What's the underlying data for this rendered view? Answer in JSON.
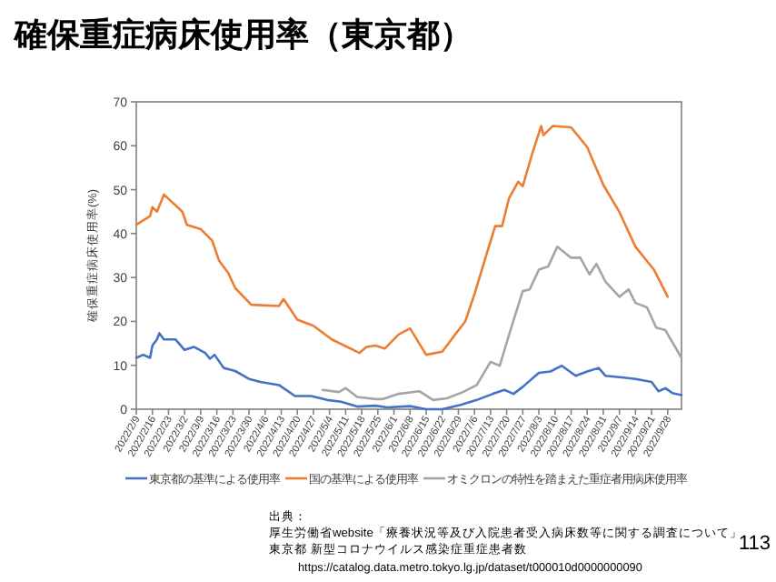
{
  "chart_data": {
    "type": "line",
    "title": "確保重症病床使用率（東京都）",
    "ylabel": "確保重症病床使用率(%)",
    "series": [
      {
        "name": "東京都の基準による使用率",
        "color": "#4472c4",
        "x": [
          "2022-02-09",
          "2022-02-12",
          "2022-02-15",
          "2022-02-16",
          "2022-02-18",
          "2022-02-19",
          "2022-02-21",
          "2022-02-26",
          "2022-03-02",
          "2022-03-06",
          "2022-03-11",
          "2022-03-13",
          "2022-03-15",
          "2022-03-19",
          "2022-03-24",
          "2022-03-30",
          "2022-04-04",
          "2022-04-12",
          "2022-04-19",
          "2022-04-26",
          "2022-05-03",
          "2022-05-09",
          "2022-05-16",
          "2022-05-24",
          "2022-05-29",
          "2022-06-08",
          "2022-06-15",
          "2022-06-22",
          "2022-06-30",
          "2022-07-07",
          "2022-07-14",
          "2022-07-19",
          "2022-07-23",
          "2022-07-27",
          "2022-08-03",
          "2022-08-08",
          "2022-08-13",
          "2022-08-19",
          "2022-08-24",
          "2022-08-29",
          "2022-09-01",
          "2022-09-09",
          "2022-09-14",
          "2022-09-21",
          "2022-09-24",
          "2022-09-27",
          "2022-09-30",
          "2022-10-04"
        ],
        "values": [
          11.7,
          12.4,
          11.7,
          14.5,
          15.9,
          17.3,
          15.9,
          15.9,
          13.5,
          14.2,
          12.8,
          11.5,
          12.4,
          9.4,
          8.7,
          6.9,
          6.2,
          5.5,
          3.0,
          3.0,
          2.1,
          1.7,
          0.6,
          0.8,
          0.4,
          0.7,
          0,
          0,
          1.0,
          2.1,
          3.5,
          4.4,
          3.5,
          5.1,
          8.3,
          8.6,
          9.9,
          7.6,
          8.6,
          9.4,
          7.6,
          7.2,
          6.9,
          6.2,
          4.1,
          4.8,
          3.7,
          3.2
        ]
      },
      {
        "name": "国の基準による使用率",
        "color": "#ed7d31",
        "x": [
          "2022-02-09",
          "2022-02-15",
          "2022-02-16",
          "2022-02-18",
          "2022-02-21",
          "2022-03-01",
          "2022-03-03",
          "2022-03-09",
          "2022-03-14",
          "2022-03-17",
          "2022-03-21",
          "2022-03-24",
          "2022-03-31",
          "2022-04-12",
          "2022-04-14",
          "2022-04-20",
          "2022-04-27",
          "2022-05-05",
          "2022-05-17",
          "2022-05-20",
          "2022-05-24",
          "2022-05-28",
          "2022-06-03",
          "2022-06-08",
          "2022-06-15",
          "2022-06-22",
          "2022-06-28",
          "2022-07-02",
          "2022-07-06",
          "2022-07-10",
          "2022-07-15",
          "2022-07-18",
          "2022-07-21",
          "2022-07-25",
          "2022-07-27",
          "2022-07-31",
          "2022-08-04",
          "2022-08-05",
          "2022-08-09",
          "2022-08-17",
          "2022-08-24",
          "2022-08-31",
          "2022-09-07",
          "2022-09-14",
          "2022-09-22",
          "2022-09-28"
        ],
        "values": [
          42.0,
          44.0,
          46.0,
          45.0,
          48.9,
          45.0,
          42.0,
          41.0,
          38.4,
          33.8,
          31.0,
          27.6,
          23.8,
          23.5,
          25.1,
          20.4,
          19.0,
          15.9,
          12.8,
          14.2,
          14.5,
          13.8,
          17.0,
          18.4,
          12.4,
          13.1,
          17.3,
          20.0,
          26.2,
          33.1,
          41.7,
          41.7,
          48.0,
          51.8,
          50.8,
          58.0,
          64.5,
          62.4,
          64.5,
          64.2,
          59.7,
          51.1,
          44.9,
          37.0,
          31.8,
          25.6
        ]
      },
      {
        "name": "オミクロンの特性を踏まえた重症者用病床使用率",
        "color": "#a5a5a5",
        "x": [
          "2022-05-01",
          "2022-05-08",
          "2022-05-11",
          "2022-05-16",
          "2022-05-24",
          "2022-05-27",
          "2022-06-03",
          "2022-06-12",
          "2022-06-18",
          "2022-06-24",
          "2022-07-01",
          "2022-07-07",
          "2022-07-13",
          "2022-07-17",
          "2022-07-22",
          "2022-07-27",
          "2022-07-30",
          "2022-08-03",
          "2022-08-07",
          "2022-08-11",
          "2022-08-17",
          "2022-08-21",
          "2022-08-25",
          "2022-08-28",
          "2022-09-01",
          "2022-09-07",
          "2022-09-11",
          "2022-09-14",
          "2022-09-19",
          "2022-09-23",
          "2022-09-27",
          "2022-10-04"
        ],
        "values": [
          4.4,
          3.9,
          4.8,
          2.8,
          2.3,
          2.3,
          3.5,
          4.1,
          2.1,
          2.5,
          3.9,
          5.5,
          10.8,
          9.9,
          18.6,
          26.9,
          27.3,
          31.8,
          32.5,
          37.0,
          34.5,
          34.5,
          30.7,
          33.1,
          29.0,
          25.6,
          27.3,
          24.2,
          23.2,
          18.6,
          18.0,
          11.7
        ]
      }
    ],
    "xlim": [
      "2022-02-09",
      "2022-10-04"
    ],
    "xticks": [
      {
        "value": "2022-02-09",
        "label": "2022/2/9"
      },
      {
        "value": "2022-02-16",
        "label": "2022/2/16"
      },
      {
        "value": "2022-02-23",
        "label": "2022/2/23"
      },
      {
        "value": "2022-03-02",
        "label": "2022/3/2"
      },
      {
        "value": "2022-03-09",
        "label": "2022/3/9"
      },
      {
        "value": "2022-03-16",
        "label": "2022/3/16"
      },
      {
        "value": "2022-03-23",
        "label": "2022/3/23"
      },
      {
        "value": "2022-03-30",
        "label": "2022/3/30"
      },
      {
        "value": "2022-04-06",
        "label": "2022/4/6"
      },
      {
        "value": "2022-04-13",
        "label": "2022/4/13"
      },
      {
        "value": "2022-04-20",
        "label": "2022/4/20"
      },
      {
        "value": "2022-04-27",
        "label": "2022/4/27"
      },
      {
        "value": "2022-05-04",
        "label": "2022/5/4"
      },
      {
        "value": "2022-05-11",
        "label": "2022/5/11"
      },
      {
        "value": "2022-05-18",
        "label": "2022/5/18"
      },
      {
        "value": "2022-05-25",
        "label": "2022/5/25"
      },
      {
        "value": "2022-06-01",
        "label": "2022/6/1"
      },
      {
        "value": "2022-06-08",
        "label": "2022/6/8"
      },
      {
        "value": "2022-06-15",
        "label": "2022/6/15"
      },
      {
        "value": "2022-06-22",
        "label": "2022/6/22"
      },
      {
        "value": "2022-06-29",
        "label": "2022/6/29"
      },
      {
        "value": "2022-07-06",
        "label": "2022/7/6"
      },
      {
        "value": "2022-07-13",
        "label": "2022/7/13"
      },
      {
        "value": "2022-07-20",
        "label": "2022/7/20"
      },
      {
        "value": "2022-07-27",
        "label": "2022/7/27"
      },
      {
        "value": "2022-08-03",
        "label": "2022/8/3"
      },
      {
        "value": "2022-08-10",
        "label": "2022/8/10"
      },
      {
        "value": "2022-08-17",
        "label": "2022/8/17"
      },
      {
        "value": "2022-08-24",
        "label": "2022/8/24"
      },
      {
        "value": "2022-08-31",
        "label": "2022/8/31"
      },
      {
        "value": "2022-09-07",
        "label": "2022/9/7"
      },
      {
        "value": "2022-09-14",
        "label": "2022/9/14"
      },
      {
        "value": "2022-09-21",
        "label": "2022/9/21"
      },
      {
        "value": "2022-09-28",
        "label": "2022/9/28"
      }
    ],
    "ylim": [
      0,
      70
    ],
    "yticks": [
      0,
      10,
      20,
      30,
      40,
      50,
      60,
      70
    ],
    "grid": false,
    "legend": "bottom",
    "marker": "none",
    "line_style": "solid",
    "annotations": [
      "出典：",
      "厚生労働省website「療養状況等及び入院患者受入病床数等に関する調査について」",
      "東京都 新型コロナウイルス感染症重症患者数",
      "https://catalog.data.metro.tokyo.lg.jp/dataset/t000010d0000000090",
      "113"
    ]
  }
}
